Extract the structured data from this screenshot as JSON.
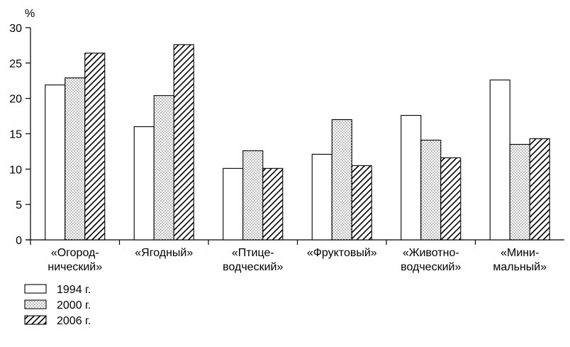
{
  "chart_data": {
    "type": "bar",
    "ylabel": "%",
    "ylim": [
      0,
      30
    ],
    "yticks": [
      0,
      5,
      10,
      15,
      20,
      25,
      30
    ],
    "categories": [
      [
        "«Огород-",
        "нический»"
      ],
      [
        "«Ягодный»"
      ],
      [
        "«Птице-",
        "водческий»"
      ],
      [
        "«Фруктовый»"
      ],
      [
        "«Животно-",
        "водческий»"
      ],
      [
        "«Мини-",
        "мальный»"
      ]
    ],
    "series": [
      {
        "name": "1994 г.",
        "pattern": "empty",
        "values": [
          21.9,
          16.0,
          10.1,
          12.1,
          17.6,
          22.6
        ]
      },
      {
        "name": "2000 г.",
        "pattern": "dotted",
        "values": [
          22.9,
          20.4,
          12.6,
          17.0,
          14.1,
          13.5
        ]
      },
      {
        "name": "2006 г.",
        "pattern": "hatched",
        "values": [
          26.4,
          27.6,
          10.1,
          10.5,
          11.6,
          14.3
        ]
      }
    ],
    "grid": false,
    "legend": "bottom-left",
    "colors": {
      "stroke": "#000000",
      "background": "#ffffff"
    }
  }
}
